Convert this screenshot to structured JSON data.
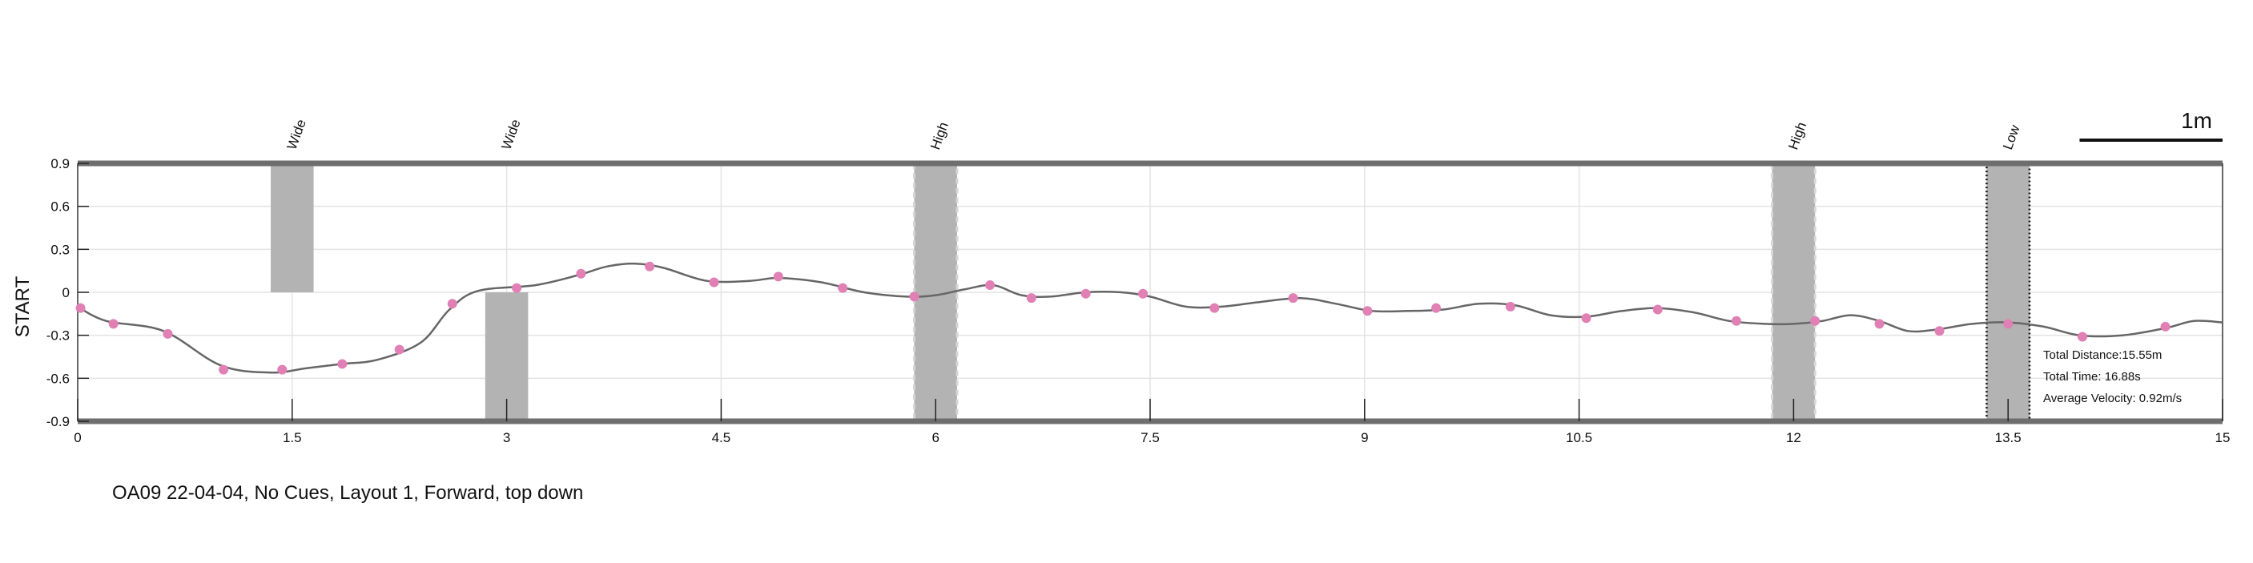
{
  "chart_data": {
    "type": "line",
    "title": "OA09 22-04-04, No Cues, Layout 1, Forward, top down",
    "ylabel": "START",
    "xlabel": "",
    "xlim": [
      0,
      15
    ],
    "ylim": [
      -0.9,
      0.9
    ],
    "x_ticks": [
      0,
      1.5,
      3,
      4.5,
      6,
      7.5,
      9,
      10.5,
      12,
      13.5,
      15
    ],
    "x_tick_labels": [
      "0",
      "1.5",
      "3",
      "4.5",
      "6",
      "7.5",
      "9",
      "10.5",
      "12",
      "13.5",
      "15"
    ],
    "y_ticks": [
      0.9,
      0.6,
      0.3,
      0,
      -0.3,
      -0.6,
      -0.9
    ],
    "y_tick_labels": [
      "0.9",
      "0.6",
      "0.3",
      "0",
      "-0.3",
      "-0.6",
      "-0.9"
    ],
    "grid": true,
    "path_x": [
      0,
      0.2,
      0.6,
      1.0,
      1.35,
      1.6,
      1.85,
      2.1,
      2.4,
      2.6,
      2.8,
      3.2,
      3.5,
      3.7,
      3.9,
      4.1,
      4.4,
      4.7,
      4.9,
      5.2,
      5.5,
      5.8,
      6.0,
      6.2,
      6.4,
      6.6,
      6.8,
      7.05,
      7.3,
      7.5,
      7.75,
      8.0,
      8.25,
      8.55,
      8.8,
      9.05,
      9.3,
      9.55,
      9.8,
      10.05,
      10.3,
      10.55,
      10.8,
      11.05,
      11.3,
      11.55,
      11.8,
      12.0,
      12.2,
      12.4,
      12.6,
      12.8,
      13.0,
      13.25,
      13.5,
      13.75,
      14.0,
      14.3,
      14.6,
      14.8,
      15.0
    ],
    "path_y": [
      -0.1,
      -0.2,
      -0.27,
      -0.51,
      -0.56,
      -0.53,
      -0.5,
      -0.47,
      -0.35,
      -0.12,
      0.01,
      0.05,
      0.12,
      0.18,
      0.2,
      0.17,
      0.08,
      0.08,
      0.1,
      0.07,
      0.0,
      -0.03,
      -0.02,
      0.02,
      0.05,
      -0.02,
      -0.03,
      0.0,
      0.0,
      -0.03,
      -0.1,
      -0.1,
      -0.07,
      -0.04,
      -0.08,
      -0.13,
      -0.13,
      -0.12,
      -0.08,
      -0.09,
      -0.16,
      -0.17,
      -0.13,
      -0.11,
      -0.14,
      -0.2,
      -0.22,
      -0.22,
      -0.2,
      -0.16,
      -0.2,
      -0.27,
      -0.26,
      -0.22,
      -0.21,
      -0.24,
      -0.3,
      -0.3,
      -0.25,
      -0.2,
      -0.21
    ],
    "markers": [
      [
        0.02,
        -0.11
      ],
      [
        0.25,
        -0.22
      ],
      [
        0.63,
        -0.29
      ],
      [
        1.02,
        -0.54
      ],
      [
        1.43,
        -0.54
      ],
      [
        1.85,
        -0.5
      ],
      [
        2.25,
        -0.4
      ],
      [
        2.62,
        -0.08
      ],
      [
        3.07,
        0.03
      ],
      [
        3.52,
        0.13
      ],
      [
        4.0,
        0.18
      ],
      [
        4.45,
        0.07
      ],
      [
        4.9,
        0.11
      ],
      [
        5.35,
        0.03
      ],
      [
        5.85,
        -0.03
      ],
      [
        6.38,
        0.05
      ],
      [
        6.67,
        -0.04
      ],
      [
        7.05,
        -0.01
      ],
      [
        7.45,
        -0.01
      ],
      [
        7.95,
        -0.11
      ],
      [
        8.5,
        -0.04
      ],
      [
        9.02,
        -0.13
      ],
      [
        9.5,
        -0.11
      ],
      [
        10.02,
        -0.1
      ],
      [
        10.55,
        -0.18
      ],
      [
        11.05,
        -0.12
      ],
      [
        11.6,
        -0.2
      ],
      [
        12.15,
        -0.2
      ],
      [
        12.6,
        -0.22
      ],
      [
        13.02,
        -0.27
      ],
      [
        13.5,
        -0.22
      ],
      [
        14.02,
        -0.31
      ],
      [
        14.6,
        -0.24
      ]
    ],
    "obstacles": [
      {
        "label": "Wide",
        "x_start": 1.35,
        "x_end": 1.65,
        "y_start": 0,
        "y_end": 0.9,
        "style": "solid"
      },
      {
        "label": "Wide",
        "x_start": 2.85,
        "x_end": 3.15,
        "y_start": -0.9,
        "y_end": 0,
        "style": "solid"
      },
      {
        "label": "High",
        "x_start": 5.85,
        "x_end": 6.15,
        "y_start": -0.9,
        "y_end": 0.9,
        "style": "dashed"
      },
      {
        "label": "High",
        "x_start": 11.85,
        "x_end": 12.15,
        "y_start": -0.9,
        "y_end": 0.9,
        "style": "dashed"
      },
      {
        "label": "Low",
        "x_start": 13.35,
        "x_end": 13.65,
        "y_start": -0.9,
        "y_end": 0.9,
        "style": "dotted"
      }
    ],
    "stats": {
      "total_distance": "Total Distance:15.55m",
      "total_time": "Total Time: 16.88s",
      "average_velocity": "Average Velocity: 0.92m/s"
    },
    "scale_bar": {
      "label": "1m",
      "length_x": 1.0
    },
    "colors": {
      "path": "#666666",
      "marker": "#e080b4",
      "obstacle": "#b3b3b3",
      "border": "#6e6e6e",
      "grid": "#e3e3e3"
    }
  }
}
